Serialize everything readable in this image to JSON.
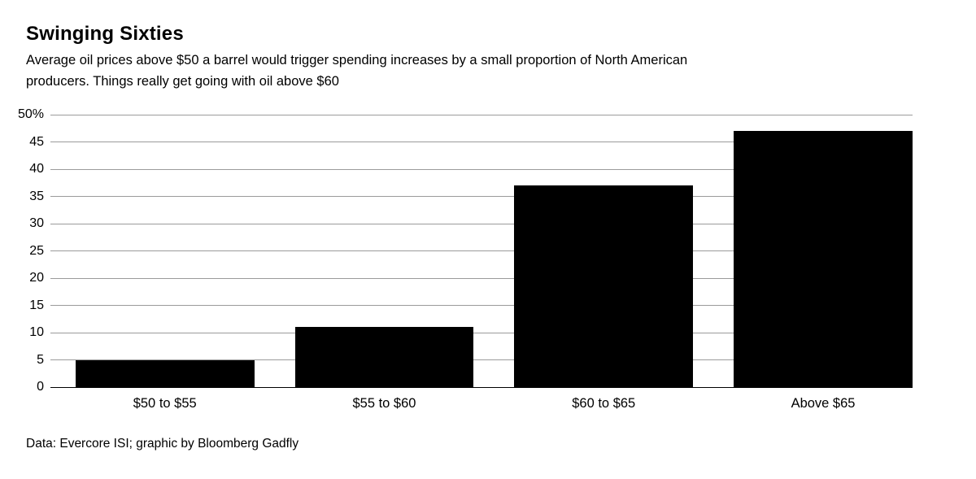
{
  "chart_data": {
    "type": "bar",
    "title": "Swinging Sixties",
    "subtitle": "Average oil prices above $50 a barrel would trigger spending increases by a small proportion of North American producers. Things really get going with oil above $60",
    "subtitle_lines": [
      "Average oil prices above $50 a barrel would trigger spending increases by a small proportion of North American",
      "producers. Things really get going with oil above $60"
    ],
    "source": "Data: Evercore ISI; graphic by Bloomberg Gadfly",
    "categories": [
      "$50 to $55",
      "$55 to $60",
      "$60 to $65",
      "Above $65"
    ],
    "values": [
      5,
      11,
      37,
      47
    ],
    "xlabel": "",
    "ylabel": "",
    "ylim": [
      0,
      50
    ],
    "ytick_step": 5,
    "yticks": [
      {
        "v": 0,
        "label": "0"
      },
      {
        "v": 5,
        "label": "5"
      },
      {
        "v": 10,
        "label": "10"
      },
      {
        "v": 15,
        "label": "15"
      },
      {
        "v": 20,
        "label": "20"
      },
      {
        "v": 25,
        "label": "25"
      },
      {
        "v": 30,
        "label": "30"
      },
      {
        "v": 35,
        "label": "35"
      },
      {
        "v": 40,
        "label": "40"
      },
      {
        "v": 45,
        "label": "45"
      },
      {
        "v": 50,
        "label": "50%"
      }
    ],
    "grid": true,
    "legend": "none",
    "bar_color": "#000000",
    "background_color": "#ffffff"
  }
}
